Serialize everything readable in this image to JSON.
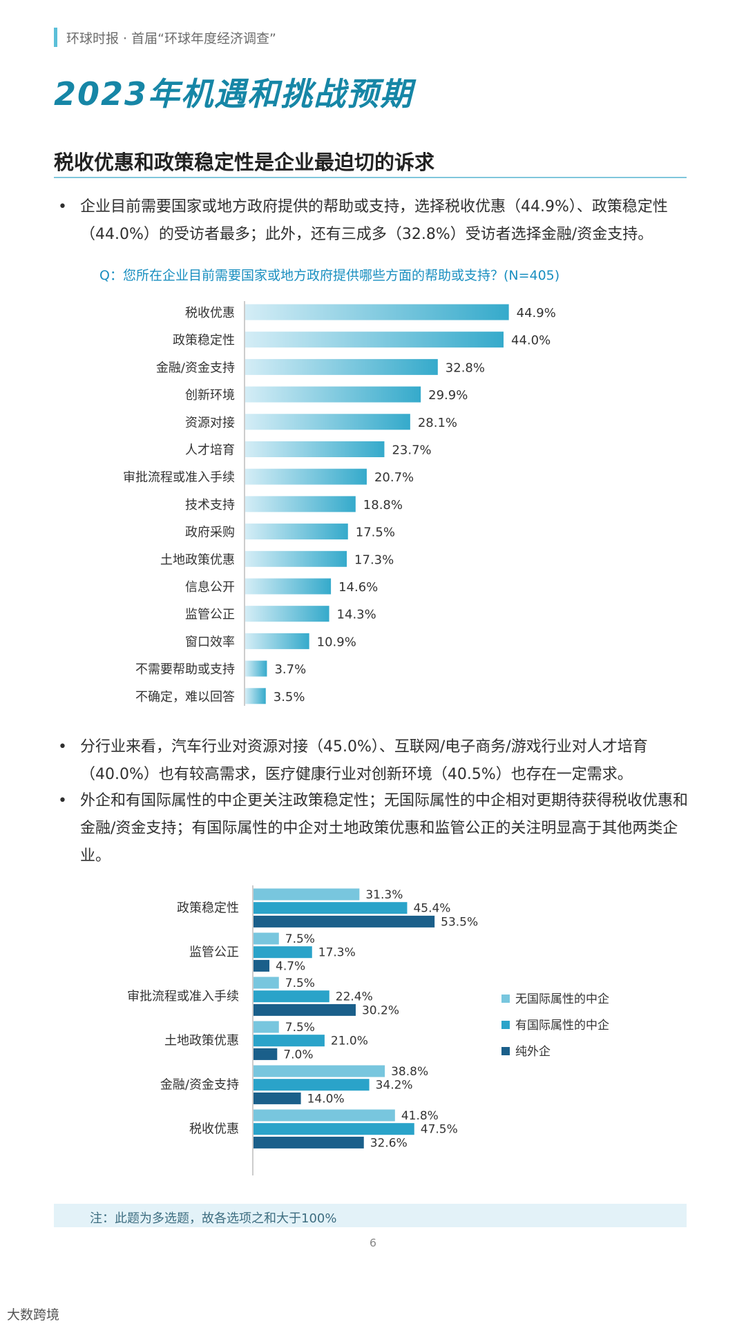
{
  "header": {
    "text": "环球时报 · 首届“环球年度经济调查”"
  },
  "title": "2023年机遇和挑战预期",
  "section_title": "税收优惠和政策稳定性是企业最迫切的诉求",
  "bullets": [
    "企业目前需要国家或地方政府提供的帮助或支持，选择税收优惠（44.9%）、政策稳定性（44.0%）的受访者最多；此外，还有三成多（32.8%）受访者选择金融/资金支持。",
    "分行业来看，汽车行业对资源对接（45.0%）、互联网/电子商务/游戏行业对人才培育（40.0%）也有较高需求，医疗健康行业对创新环境（40.5%）也存在一定需求。",
    "外企和有国际属性的中企更关注政策稳定性；无国际属性的中企相对更期待获得税收优惠和金融/资金支持；有国际属性的中企对土地政策优惠和监管公正的关注明显高于其他两类企业。"
  ],
  "bullet_mark": "•",
  "chart1_question": "Q：您所在企业目前需要国家或地方政府提供哪些方面的帮助或支持？(N=405)",
  "chart_data": [
    {
      "type": "bar",
      "orientation": "horizontal",
      "title": "",
      "categories": [
        "税收优惠",
        "政策稳定性",
        "金融/资金支持",
        "创新环境",
        "资源对接",
        "人才培育",
        "审批流程或准入手续",
        "技术支持",
        "政府采购",
        "土地政策优惠",
        "信息公开",
        "监管公正",
        "窗口效率",
        "不需要帮助或支持",
        "不确定，难以回答"
      ],
      "values": [
        44.9,
        44.0,
        32.8,
        29.9,
        28.1,
        23.7,
        20.7,
        18.8,
        17.5,
        17.3,
        14.6,
        14.3,
        10.9,
        3.7,
        3.5
      ],
      "value_suffix": "%",
      "xlim": [
        0,
        50
      ],
      "grid": false,
      "legend": "none"
    },
    {
      "type": "bar",
      "orientation": "horizontal",
      "title": "",
      "categories": [
        "政策稳定性",
        "监管公正",
        "审批流程或准入手续",
        "土地政策优惠",
        "金融/资金支持",
        "税收优惠"
      ],
      "series": [
        {
          "name": "无国际属性的中企",
          "values": [
            31.3,
            7.5,
            7.5,
            7.5,
            38.8,
            41.8
          ]
        },
        {
          "name": "有国际属性的中企",
          "values": [
            45.4,
            17.3,
            22.4,
            21.0,
            34.2,
            47.5
          ]
        },
        {
          "name": "纯外企",
          "values": [
            53.5,
            4.7,
            30.2,
            7.0,
            14.0,
            32.6
          ]
        }
      ],
      "value_suffix": "%",
      "xlim": [
        0,
        60
      ],
      "grid": false,
      "legend": "right"
    }
  ],
  "colors": {
    "accent": "#1686a6",
    "bar_single_light": "#d4edf6",
    "bar_single_dark": "#35aacb",
    "series": [
      "#78c6de",
      "#2aa3c9",
      "#1a5f8a"
    ]
  },
  "note": "注：此题为多选题，故各选项之和大于100%",
  "page_number": "6",
  "corner_logo": "大数跨境"
}
